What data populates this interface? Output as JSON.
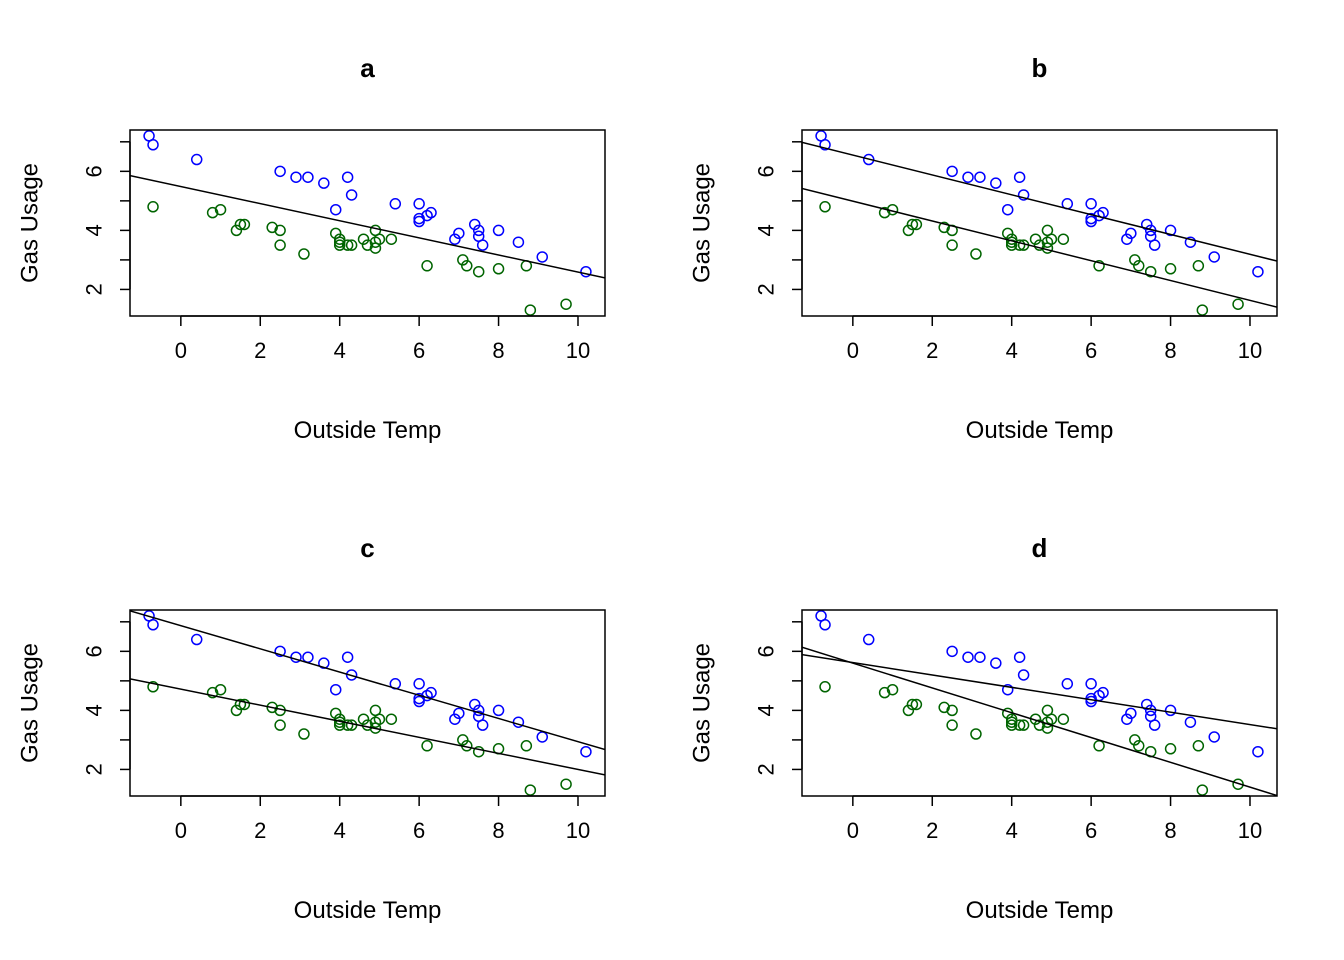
{
  "colors": {
    "series1": "#0000ff",
    "series2": "#006400",
    "line": "#000000"
  },
  "chart_data": [
    {
      "type": "scatter",
      "title": "a",
      "xlabel": "Outside Temp",
      "ylabel": "Gas Usage",
      "xlim": [
        -1.28,
        10.68
      ],
      "ylim": [
        1.1,
        7.4
      ],
      "xticks": [
        0,
        2,
        4,
        6,
        8,
        10
      ],
      "yticks": [
        2,
        4,
        6
      ],
      "series": [
        {
          "color": "blue",
          "points": [
            [
              -0.8,
              7.2
            ],
            [
              -0.7,
              6.9
            ],
            [
              0.4,
              6.4
            ],
            [
              2.5,
              6.0
            ],
            [
              2.9,
              5.8
            ],
            [
              3.2,
              5.8
            ],
            [
              3.6,
              5.6
            ],
            [
              3.9,
              4.7
            ],
            [
              4.2,
              5.8
            ],
            [
              4.3,
              5.2
            ],
            [
              5.4,
              4.9
            ],
            [
              6.0,
              4.9
            ],
            [
              6.0,
              4.4
            ],
            [
              6.0,
              4.3
            ],
            [
              6.2,
              4.5
            ],
            [
              6.3,
              4.6
            ],
            [
              6.9,
              3.7
            ],
            [
              7.0,
              3.9
            ],
            [
              7.4,
              4.2
            ],
            [
              7.5,
              4.0
            ],
            [
              7.5,
              3.8
            ],
            [
              7.6,
              3.5
            ],
            [
              8.0,
              4.0
            ],
            [
              8.5,
              3.6
            ],
            [
              9.1,
              3.1
            ],
            [
              10.2,
              2.6
            ]
          ]
        },
        {
          "color": "green",
          "points": [
            [
              -0.7,
              4.8
            ],
            [
              0.8,
              4.6
            ],
            [
              1.0,
              4.7
            ],
            [
              1.4,
              4.0
            ],
            [
              1.5,
              4.2
            ],
            [
              1.6,
              4.2
            ],
            [
              2.3,
              4.1
            ],
            [
              2.5,
              4.0
            ],
            [
              2.5,
              3.5
            ],
            [
              3.1,
              3.2
            ],
            [
              3.9,
              3.9
            ],
            [
              4.0,
              3.6
            ],
            [
              4.0,
              3.7
            ],
            [
              4.0,
              3.5
            ],
            [
              4.2,
              3.5
            ],
            [
              4.3,
              3.5
            ],
            [
              4.6,
              3.7
            ],
            [
              4.7,
              3.5
            ],
            [
              4.9,
              4.0
            ],
            [
              4.9,
              3.6
            ],
            [
              4.9,
              3.4
            ],
            [
              5.0,
              3.7
            ],
            [
              5.3,
              3.7
            ],
            [
              6.2,
              2.8
            ],
            [
              7.1,
              3.0
            ],
            [
              7.2,
              2.8
            ],
            [
              7.5,
              2.6
            ],
            [
              8.0,
              2.7
            ],
            [
              8.7,
              2.8
            ],
            [
              8.8,
              1.3
            ],
            [
              9.7,
              1.5
            ]
          ]
        }
      ],
      "lines": [
        {
          "intercept": 5.486,
          "slope": -0.29
        }
      ]
    },
    {
      "type": "scatter",
      "title": "b",
      "xlabel": "Outside Temp",
      "ylabel": "Gas Usage",
      "xlim": [
        -1.28,
        10.68
      ],
      "ylim": [
        1.1,
        7.4
      ],
      "xticks": [
        0,
        2,
        4,
        6,
        8,
        10
      ],
      "yticks": [
        2,
        4,
        6
      ],
      "series": [
        {
          "color": "blue",
          "points": [
            [
              -0.8,
              7.2
            ],
            [
              -0.7,
              6.9
            ],
            [
              0.4,
              6.4
            ],
            [
              2.5,
              6.0
            ],
            [
              2.9,
              5.8
            ],
            [
              3.2,
              5.8
            ],
            [
              3.6,
              5.6
            ],
            [
              3.9,
              4.7
            ],
            [
              4.2,
              5.8
            ],
            [
              4.3,
              5.2
            ],
            [
              5.4,
              4.9
            ],
            [
              6.0,
              4.9
            ],
            [
              6.0,
              4.4
            ],
            [
              6.0,
              4.3
            ],
            [
              6.2,
              4.5
            ],
            [
              6.3,
              4.6
            ],
            [
              6.9,
              3.7
            ],
            [
              7.0,
              3.9
            ],
            [
              7.4,
              4.2
            ],
            [
              7.5,
              4.0
            ],
            [
              7.5,
              3.8
            ],
            [
              7.6,
              3.5
            ],
            [
              8.0,
              4.0
            ],
            [
              8.5,
              3.6
            ],
            [
              9.1,
              3.1
            ],
            [
              10.2,
              2.6
            ]
          ]
        },
        {
          "color": "green",
          "points": [
            [
              -0.7,
              4.8
            ],
            [
              0.8,
              4.6
            ],
            [
              1.0,
              4.7
            ],
            [
              1.4,
              4.0
            ],
            [
              1.5,
              4.2
            ],
            [
              1.6,
              4.2
            ],
            [
              2.3,
              4.1
            ],
            [
              2.5,
              4.0
            ],
            [
              2.5,
              3.5
            ],
            [
              3.1,
              3.2
            ],
            [
              3.9,
              3.9
            ],
            [
              4.0,
              3.6
            ],
            [
              4.0,
              3.7
            ],
            [
              4.0,
              3.5
            ],
            [
              4.2,
              3.5
            ],
            [
              4.3,
              3.5
            ],
            [
              4.6,
              3.7
            ],
            [
              4.7,
              3.5
            ],
            [
              4.9,
              4.0
            ],
            [
              4.9,
              3.6
            ],
            [
              4.9,
              3.4
            ],
            [
              5.0,
              3.7
            ],
            [
              5.3,
              3.7
            ],
            [
              6.2,
              2.8
            ],
            [
              7.1,
              3.0
            ],
            [
              7.2,
              2.8
            ],
            [
              7.5,
              2.6
            ],
            [
              8.0,
              2.7
            ],
            [
              8.7,
              2.8
            ],
            [
              8.8,
              1.3
            ],
            [
              9.7,
              1.5
            ]
          ]
        }
      ],
      "lines": [
        {
          "intercept": 6.55,
          "slope": -0.336
        },
        {
          "intercept": 4.99,
          "slope": -0.336
        }
      ]
    },
    {
      "type": "scatter",
      "title": "c",
      "xlabel": "Outside Temp",
      "ylabel": "Gas Usage",
      "xlim": [
        -1.28,
        10.68
      ],
      "ylim": [
        1.1,
        7.4
      ],
      "xticks": [
        0,
        2,
        4,
        6,
        8,
        10
      ],
      "yticks": [
        2,
        4,
        6
      ],
      "series": [
        {
          "color": "blue",
          "points": [
            [
              -0.8,
              7.2
            ],
            [
              -0.7,
              6.9
            ],
            [
              0.4,
              6.4
            ],
            [
              2.5,
              6.0
            ],
            [
              2.9,
              5.8
            ],
            [
              3.2,
              5.8
            ],
            [
              3.6,
              5.6
            ],
            [
              3.9,
              4.7
            ],
            [
              4.2,
              5.8
            ],
            [
              4.3,
              5.2
            ],
            [
              5.4,
              4.9
            ],
            [
              6.0,
              4.9
            ],
            [
              6.0,
              4.4
            ],
            [
              6.0,
              4.3
            ],
            [
              6.2,
              4.5
            ],
            [
              6.3,
              4.6
            ],
            [
              6.9,
              3.7
            ],
            [
              7.0,
              3.9
            ],
            [
              7.4,
              4.2
            ],
            [
              7.5,
              4.0
            ],
            [
              7.5,
              3.8
            ],
            [
              7.6,
              3.5
            ],
            [
              8.0,
              4.0
            ],
            [
              8.5,
              3.6
            ],
            [
              9.1,
              3.1
            ],
            [
              10.2,
              2.6
            ]
          ]
        },
        {
          "color": "green",
          "points": [
            [
              -0.7,
              4.8
            ],
            [
              0.8,
              4.6
            ],
            [
              1.0,
              4.7
            ],
            [
              1.4,
              4.0
            ],
            [
              1.5,
              4.2
            ],
            [
              1.6,
              4.2
            ],
            [
              2.3,
              4.1
            ],
            [
              2.5,
              4.0
            ],
            [
              2.5,
              3.5
            ],
            [
              3.1,
              3.2
            ],
            [
              3.9,
              3.9
            ],
            [
              4.0,
              3.6
            ],
            [
              4.0,
              3.7
            ],
            [
              4.0,
              3.5
            ],
            [
              4.2,
              3.5
            ],
            [
              4.3,
              3.5
            ],
            [
              4.6,
              3.7
            ],
            [
              4.7,
              3.5
            ],
            [
              4.9,
              4.0
            ],
            [
              4.9,
              3.6
            ],
            [
              4.9,
              3.4
            ],
            [
              5.0,
              3.7
            ],
            [
              5.3,
              3.7
            ],
            [
              6.2,
              2.8
            ],
            [
              7.1,
              3.0
            ],
            [
              7.2,
              2.8
            ],
            [
              7.5,
              2.6
            ],
            [
              8.0,
              2.7
            ],
            [
              8.7,
              2.8
            ],
            [
              8.8,
              1.3
            ],
            [
              9.7,
              1.5
            ]
          ]
        }
      ],
      "lines": [
        {
          "intercept": 6.87,
          "slope": -0.393
        },
        {
          "intercept": 4.72,
          "slope": -0.272
        }
      ]
    },
    {
      "type": "scatter",
      "title": "d",
      "xlabel": "Outside Temp",
      "ylabel": "Gas Usage",
      "xlim": [
        -1.28,
        10.68
      ],
      "ylim": [
        1.1,
        7.4
      ],
      "xticks": [
        0,
        2,
        4,
        6,
        8,
        10
      ],
      "yticks": [
        2,
        4,
        6
      ],
      "series": [
        {
          "color": "blue",
          "points": [
            [
              -0.8,
              7.2
            ],
            [
              -0.7,
              6.9
            ],
            [
              0.4,
              6.4
            ],
            [
              2.5,
              6.0
            ],
            [
              2.9,
              5.8
            ],
            [
              3.2,
              5.8
            ],
            [
              3.6,
              5.6
            ],
            [
              3.9,
              4.7
            ],
            [
              4.2,
              5.8
            ],
            [
              4.3,
              5.2
            ],
            [
              5.4,
              4.9
            ],
            [
              6.0,
              4.9
            ],
            [
              6.0,
              4.4
            ],
            [
              6.0,
              4.3
            ],
            [
              6.2,
              4.5
            ],
            [
              6.3,
              4.6
            ],
            [
              6.9,
              3.7
            ],
            [
              7.0,
              3.9
            ],
            [
              7.4,
              4.2
            ],
            [
              7.5,
              4.0
            ],
            [
              7.5,
              3.8
            ],
            [
              7.6,
              3.5
            ],
            [
              8.0,
              4.0
            ],
            [
              8.5,
              3.6
            ],
            [
              9.1,
              3.1
            ],
            [
              10.2,
              2.6
            ]
          ]
        },
        {
          "color": "green",
          "points": [
            [
              -0.7,
              4.8
            ],
            [
              0.8,
              4.6
            ],
            [
              1.0,
              4.7
            ],
            [
              1.4,
              4.0
            ],
            [
              1.5,
              4.2
            ],
            [
              1.6,
              4.2
            ],
            [
              2.3,
              4.1
            ],
            [
              2.5,
              4.0
            ],
            [
              2.5,
              3.5
            ],
            [
              3.1,
              3.2
            ],
            [
              3.9,
              3.9
            ],
            [
              4.0,
              3.6
            ],
            [
              4.0,
              3.7
            ],
            [
              4.0,
              3.5
            ],
            [
              4.2,
              3.5
            ],
            [
              4.3,
              3.5
            ],
            [
              4.6,
              3.7
            ],
            [
              4.7,
              3.5
            ],
            [
              4.9,
              4.0
            ],
            [
              4.9,
              3.6
            ],
            [
              4.9,
              3.4
            ],
            [
              5.0,
              3.7
            ],
            [
              5.3,
              3.7
            ],
            [
              6.2,
              2.8
            ],
            [
              7.1,
              3.0
            ],
            [
              7.2,
              2.8
            ],
            [
              7.5,
              2.6
            ],
            [
              8.0,
              2.7
            ],
            [
              8.7,
              2.8
            ],
            [
              8.8,
              1.3
            ],
            [
              9.7,
              1.5
            ]
          ]
        }
      ],
      "lines": [
        {
          "intercept": 5.62,
          "slope": -0.21
        },
        {
          "intercept": 5.6,
          "slope": -0.42
        }
      ]
    }
  ]
}
